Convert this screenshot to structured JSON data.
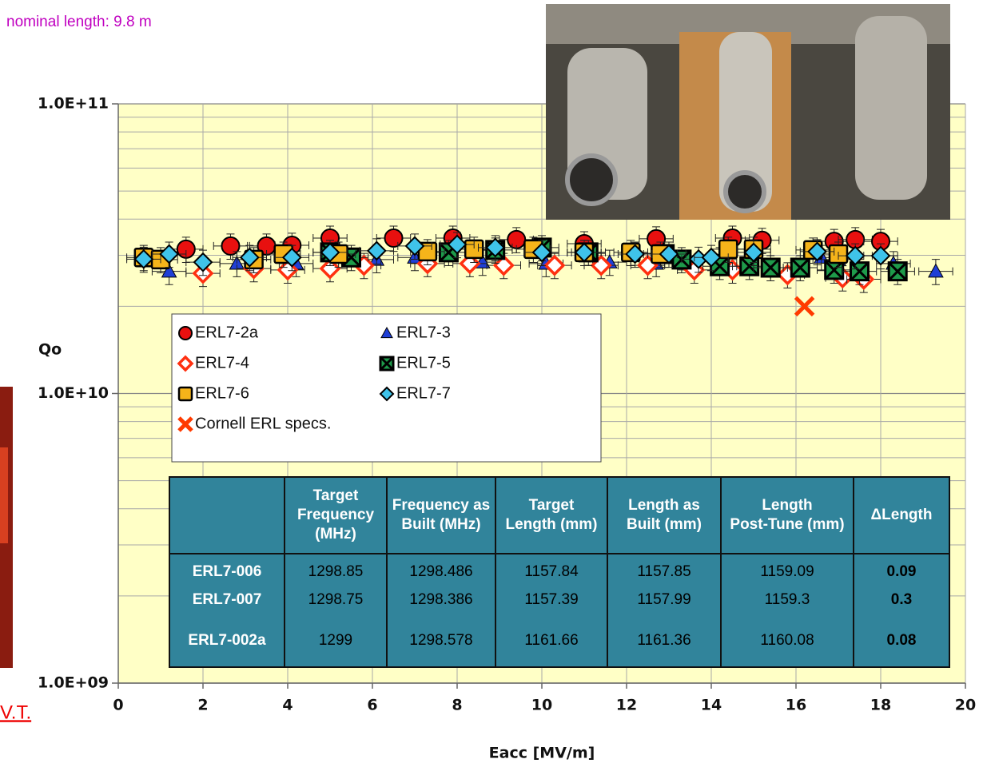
{
  "chart_data": {
    "type": "scatter",
    "y_label": "Qo",
    "x_label": "Eacc [MV/m]",
    "log_y": true,
    "grid": true,
    "xlim": [
      0,
      20
    ],
    "xticks": [
      0,
      2,
      4,
      6,
      8,
      10,
      12,
      14,
      16,
      18,
      20
    ],
    "ylim": [
      1000000000.0,
      100000000000.0
    ],
    "yticks": [
      {
        "value": 1000000000.0,
        "label": "1.0E+09"
      },
      {
        "value": 10000000000.0,
        "label": "1.0E+10"
      },
      {
        "value": 100000000000.0,
        "label": "1.0E+11"
      }
    ],
    "y_minor_gridlines": [
      2000000000.0,
      3000000000.0,
      4000000000.0,
      5000000000.0,
      6000000000.0,
      7000000000.0,
      8000000000.0,
      9000000000.0,
      20000000000.0,
      30000000000.0,
      40000000000.0,
      50000000000.0,
      60000000000.0,
      70000000000.0,
      80000000000.0,
      90000000000.0
    ],
    "error_bars": {
      "x": 0.4,
      "y_percent": 10
    },
    "series": [
      {
        "name": "ERL7-2a",
        "marker": "circle",
        "color": "#e8100f",
        "x": [
          1.6,
          2.65,
          3.5,
          4.1,
          5.0,
          6.5,
          7.9,
          9.4,
          11.0,
          12.7,
          14.5,
          15.2,
          16.9,
          17.4,
          18.0
        ],
        "values": [
          31500000000.0,
          32300000000.0,
          32300000000.0,
          32500000000.0,
          34400000000.0,
          34400000000.0,
          34400000000.0,
          34000000000.0,
          32900000000.0,
          34200000000.0,
          34400000000.0,
          33800000000.0,
          33500000000.0,
          34000000000.0,
          33500000000.0
        ]
      },
      {
        "name": "ERL7-3",
        "marker": "triangle",
        "color": "#1f3fd6",
        "x": [
          1.2,
          2.8,
          4.2,
          6.1,
          7.0,
          8.6,
          10.1,
          11.6,
          12.7,
          14.2,
          16.6,
          17.0,
          18.3,
          19.3
        ],
        "values": [
          26400000000.0,
          28100000000.0,
          28100000000.0,
          29000000000.0,
          29500000000.0,
          28400000000.0,
          28100000000.0,
          28400000000.0,
          28100000000.0,
          29000000000.0,
          29500000000.0,
          29000000000.0,
          28100000000.0,
          26400000000.0
        ]
      },
      {
        "name": "ERL7-4",
        "marker": "diamond-open",
        "color": "#ff3010",
        "x": [
          2.0,
          3.2,
          4.0,
          5.0,
          5.8,
          7.3,
          8.3,
          9.1,
          10.3,
          11.4,
          12.5,
          13.6,
          14.5,
          15.8,
          17.1,
          17.6
        ],
        "values": [
          26000000000.0,
          27000000000.0,
          26700000000.0,
          27000000000.0,
          27700000000.0,
          28100000000.0,
          28100000000.0,
          27700000000.0,
          27700000000.0,
          27700000000.0,
          27700000000.0,
          26700000000.0,
          26700000000.0,
          25700000000.0,
          25100000000.0,
          24800000000.0
        ]
      },
      {
        "name": "ERL7-5",
        "marker": "x-square",
        "color": "#1e9a4a",
        "x": [
          5.0,
          5.5,
          7.8,
          8.9,
          10.0,
          11.1,
          12.9,
          13.3,
          14.2,
          14.9,
          15.4,
          16.1,
          16.9,
          17.5,
          18.4
        ],
        "values": [
          30700000000.0,
          29500000000.0,
          30700000000.0,
          31300000000.0,
          31900000000.0,
          30700000000.0,
          30300000000.0,
          29000000000.0,
          27500000000.0,
          27500000000.0,
          27200000000.0,
          27200000000.0,
          26700000000.0,
          26400000000.0,
          26400000000.0
        ]
      },
      {
        "name": "ERL7-6",
        "marker": "square",
        "color": "#f5b41a",
        "x": [
          0.6,
          1.0,
          3.2,
          3.9,
          5.2,
          7.3,
          8.4,
          9.8,
          11.0,
          12.1,
          12.8,
          14.4,
          15.0,
          16.4,
          17.0
        ],
        "values": [
          29500000000.0,
          29000000000.0,
          29000000000.0,
          30300000000.0,
          30300000000.0,
          30900000000.0,
          31500000000.0,
          31500000000.0,
          30700000000.0,
          30700000000.0,
          30300000000.0,
          31500000000.0,
          31500000000.0,
          31300000000.0,
          30300000000.0
        ]
      },
      {
        "name": "ERL7-7",
        "marker": "diamond",
        "color": "#3fc3ea",
        "x": [
          0.6,
          1.2,
          2.0,
          3.1,
          4.1,
          5.0,
          6.1,
          7.0,
          8.0,
          8.9,
          10.0,
          11.0,
          12.2,
          13.0,
          13.7,
          14.0,
          15.0,
          16.5,
          17.4,
          18.0
        ],
        "values": [
          29100000000.0,
          30300000000.0,
          28400000000.0,
          29500000000.0,
          29500000000.0,
          30700000000.0,
          31100000000.0,
          32300000000.0,
          32700000000.0,
          31900000000.0,
          30700000000.0,
          30700000000.0,
          30300000000.0,
          30300000000.0,
          29100000000.0,
          29500000000.0,
          30700000000.0,
          30900000000.0,
          29900000000.0,
          29900000000.0
        ]
      },
      {
        "name": "Cornell ERL specs.",
        "marker": "x",
        "color": "#ff3b00",
        "x": [
          16.2
        ],
        "values": [
          20000000000.0
        ]
      }
    ]
  },
  "annotation": "nominal length: 9.8 m",
  "link_text": "V.T.",
  "table": {
    "header": [
      "",
      "Target Frequency (MHz)",
      "Frequency as Built (MHz)",
      "Target Length (mm)",
      "Length as Built (mm)",
      "Length Post-Tune (mm)",
      "ΔLength"
    ],
    "rows": [
      [
        "ERL7-006",
        "1298.85",
        "1298.486",
        "1157.84",
        "1157.85",
        "1159.09",
        "0.09"
      ],
      [
        "ERL7-007",
        "1298.75",
        "1298.386",
        "1157.39",
        "1157.99",
        "1159.3",
        "0.3"
      ],
      [
        "ERL7-002a",
        "1299",
        "1298.578",
        "1161.66",
        "1161.36",
        "1160.08",
        "0.08"
      ]
    ]
  }
}
